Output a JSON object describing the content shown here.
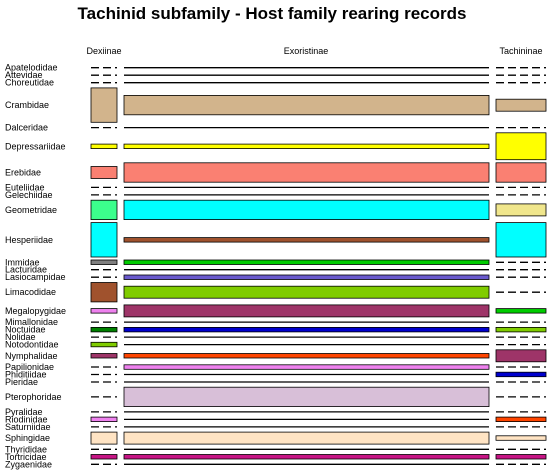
{
  "chart_data": {
    "type": "table",
    "title": "Tachinid subfamily - Host family rearing records",
    "columns": [
      "Dexiinae",
      "Exoristinae",
      "Tachininae"
    ],
    "rows": [
      {
        "family": "Apatelodidae",
        "records": [
          0,
          0,
          0
        ],
        "colors": [
          null,
          null,
          null
        ]
      },
      {
        "family": "Attevidae",
        "records": [
          0,
          0,
          0
        ],
        "colors": [
          null,
          null,
          null
        ]
      },
      {
        "family": "Choreutidae",
        "records": [
          0,
          0,
          0
        ],
        "colors": [
          null,
          null,
          null
        ]
      },
      {
        "family": "Crambidae",
        "records": [
          5,
          3,
          2
        ],
        "colors": [
          "#D2B48C",
          "#D2B48C",
          "#D2B48C"
        ]
      },
      {
        "family": "Dalceridae",
        "records": [
          0,
          0,
          0
        ],
        "colors": [
          null,
          null,
          null
        ]
      },
      {
        "family": "Depressariidae",
        "records": [
          1,
          1,
          4
        ],
        "colors": [
          "#FFFF00",
          "#FFFF00",
          "#FFFF00"
        ]
      },
      {
        "family": "Erebidae",
        "records": [
          2,
          3,
          3
        ],
        "colors": [
          "#FA8072",
          "#FA8072",
          "#FA8072"
        ]
      },
      {
        "family": "Euteliidae",
        "records": [
          0,
          0,
          0
        ],
        "colors": [
          null,
          null,
          null
        ]
      },
      {
        "family": "Gelechiidae",
        "records": [
          0,
          0,
          0
        ],
        "colors": [
          null,
          null,
          null
        ]
      },
      {
        "family": "Geometridae",
        "records": [
          3,
          3,
          2
        ],
        "colors": [
          "#3CFF8C",
          "#00FFFF",
          "#F0E68C"
        ]
      },
      {
        "family": "Hesperiidae",
        "records": [
          5,
          1,
          5
        ],
        "colors": [
          "#00FFFF",
          "#A0522D",
          "#00FFFF"
        ]
      },
      {
        "family": "Immidae",
        "records": [
          1,
          1,
          0
        ],
        "colors": [
          "#808080",
          "#00CC00",
          null
        ]
      },
      {
        "family": "Lacturidae",
        "records": [
          0,
          0,
          0
        ],
        "colors": [
          null,
          null,
          null
        ]
      },
      {
        "family": "Lasiocampidae",
        "records": [
          0,
          1,
          0
        ],
        "colors": [
          null,
          "#6A5ACD",
          null
        ]
      },
      {
        "family": "Limacodidae",
        "records": [
          3,
          2,
          0
        ],
        "colors": [
          "#A0522D",
          "#80CC00",
          null
        ]
      },
      {
        "family": "Megalopygidae",
        "records": [
          1,
          2,
          1
        ],
        "colors": [
          "#EE82EE",
          "#9E3468",
          "#00CC00"
        ]
      },
      {
        "family": "Mimallonidae",
        "records": [
          0,
          0,
          0
        ],
        "colors": [
          null,
          null,
          null
        ]
      },
      {
        "family": "Noctuidae",
        "records": [
          1,
          1,
          1
        ],
        "colors": [
          "#008000",
          "#0000CD",
          "#80CC00"
        ]
      },
      {
        "family": "Nolidae",
        "records": [
          0,
          0,
          0
        ],
        "colors": [
          null,
          null,
          null
        ]
      },
      {
        "family": "Notodontidae",
        "records": [
          1,
          0,
          0
        ],
        "colors": [
          "#80CC00",
          null,
          null
        ]
      },
      {
        "family": "Nymphalidae",
        "records": [
          1,
          1,
          2
        ],
        "colors": [
          "#9E3468",
          "#FF4500",
          "#9E3468"
        ]
      },
      {
        "family": "Papilionidae",
        "records": [
          0,
          1,
          0
        ],
        "colors": [
          null,
          "#EE82EE",
          null
        ]
      },
      {
        "family": "Phiditiidae",
        "records": [
          0,
          0,
          1
        ],
        "colors": [
          null,
          null,
          "#0000CD"
        ]
      },
      {
        "family": "Pieridae",
        "records": [
          0,
          0,
          0
        ],
        "colors": [
          null,
          null,
          null
        ]
      },
      {
        "family": "Pterophoridae",
        "records": [
          0,
          3,
          0
        ],
        "colors": [
          null,
          "#D8BFD8",
          null
        ]
      },
      {
        "family": "Pyralidae",
        "records": [
          0,
          0,
          0
        ],
        "colors": [
          null,
          null,
          null
        ]
      },
      {
        "family": "Riodinidae",
        "records": [
          1,
          0,
          1
        ],
        "colors": [
          "#EE82EE",
          null,
          "#FF4500"
        ]
      },
      {
        "family": "Saturniidae",
        "records": [
          0,
          0,
          0
        ],
        "colors": [
          null,
          null,
          null
        ]
      },
      {
        "family": "Sphingidae",
        "records": [
          2,
          2,
          1
        ],
        "colors": [
          "#FFE4C4",
          "#FFE4C4",
          "#FFE4C4"
        ]
      },
      {
        "family": "Thyrididae",
        "records": [
          0,
          0,
          0
        ],
        "colors": [
          null,
          null,
          null
        ]
      },
      {
        "family": "Tortricidae",
        "records": [
          1,
          1,
          1
        ],
        "colors": [
          "#C71585",
          "#C71585",
          "#C71585"
        ]
      },
      {
        "family": "Zygaenidae",
        "records": [
          0,
          0,
          0
        ],
        "colors": [
          null,
          null,
          null
        ]
      }
    ]
  }
}
